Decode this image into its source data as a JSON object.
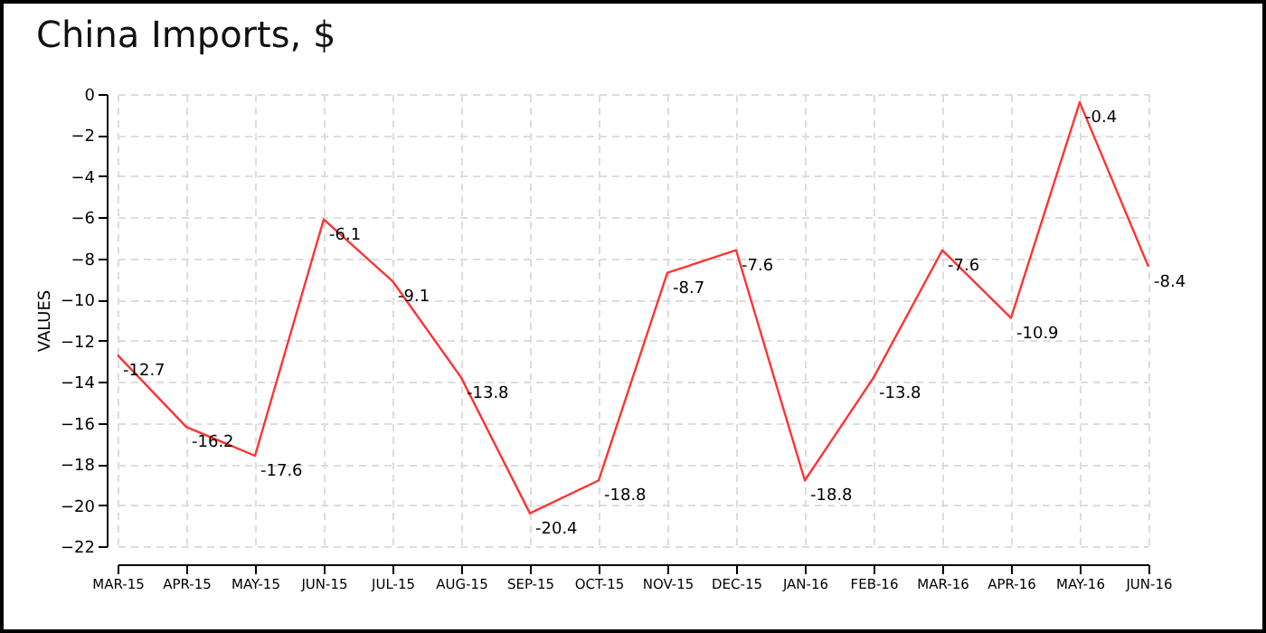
{
  "chart_data": {
    "type": "line",
    "title": "China Imports, $",
    "ylabel": "VALUES",
    "categories": [
      "MAR-15",
      "APR-15",
      "MAY-15",
      "JUN-15",
      "JUL-15",
      "AUG-15",
      "SEP-15",
      "OCT-15",
      "NOV-15",
      "DEC-15",
      "JAN-16",
      "FEB-16",
      "MAR-16",
      "APR-16",
      "MAY-16",
      "JUN-16"
    ],
    "series": [
      {
        "color": "#ff3333",
        "values": [
          -12.7,
          -16.2,
          -17.6,
          -6.1,
          -9.1,
          -13.8,
          -20.4,
          -18.8,
          -8.7,
          -7.6,
          -18.8,
          -13.8,
          -7.6,
          -10.9,
          -0.4,
          -8.4
        ]
      }
    ],
    "ylim": [
      -22,
      0
    ],
    "yticks": [
      -22,
      -20,
      -18,
      -16,
      -14,
      -12,
      -10,
      -8,
      -6,
      -4,
      -2,
      0
    ],
    "grid": true,
    "data_labels": true,
    "marker": "none",
    "line_style": "solid",
    "legend": false
  }
}
